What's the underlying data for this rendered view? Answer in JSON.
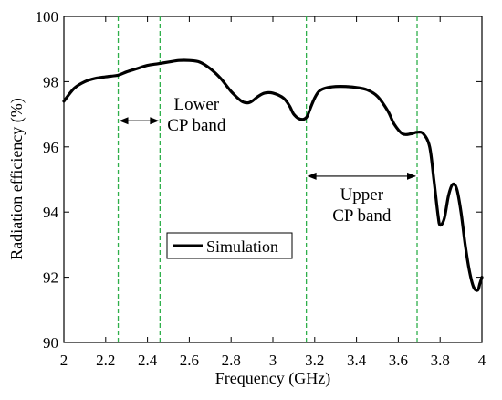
{
  "chart_data": {
    "type": "line",
    "xlabel": "Frequency (GHz)",
    "ylabel": "Radiation efficiency (%)",
    "xlim": [
      2,
      4
    ],
    "ylim": [
      90,
      100
    ],
    "x_ticks": [
      2,
      2.2,
      2.4,
      2.6,
      2.8,
      3,
      3.2,
      3.4,
      3.6,
      3.8,
      4
    ],
    "x_tick_labels": [
      "2",
      "2.2",
      "2.4",
      "2.6",
      "2.8",
      "3",
      "3.2",
      "3.4",
      "3.6",
      "3.8",
      "4"
    ],
    "y_ticks": [
      90,
      92,
      94,
      96,
      98,
      100
    ],
    "y_tick_labels": [
      "90",
      "92",
      "94",
      "96",
      "98",
      "100"
    ],
    "grid": false,
    "legend": {
      "placement": "center-left",
      "entries": [
        "Simulation"
      ]
    },
    "series": [
      {
        "name": "Simulation",
        "color": "#000000",
        "x": [
          2.0,
          2.05,
          2.1,
          2.15,
          2.2,
          2.26,
          2.3,
          2.35,
          2.4,
          2.45,
          2.5,
          2.55,
          2.6,
          2.65,
          2.7,
          2.75,
          2.8,
          2.85,
          2.88,
          2.9,
          2.93,
          2.96,
          3.0,
          3.05,
          3.08,
          3.1,
          3.13,
          3.16,
          3.18,
          3.2,
          3.22,
          3.25,
          3.3,
          3.35,
          3.4,
          3.45,
          3.5,
          3.55,
          3.58,
          3.62,
          3.66,
          3.69,
          3.72,
          3.75,
          3.77,
          3.79,
          3.8,
          3.82,
          3.84,
          3.86,
          3.88,
          3.9,
          3.92,
          3.94,
          3.96,
          3.98,
          3.99,
          4.0
        ],
        "y": [
          97.4,
          97.8,
          98.0,
          98.1,
          98.15,
          98.2,
          98.3,
          98.4,
          98.5,
          98.55,
          98.6,
          98.65,
          98.65,
          98.6,
          98.4,
          98.1,
          97.7,
          97.4,
          97.35,
          97.4,
          97.55,
          97.65,
          97.65,
          97.5,
          97.25,
          97.0,
          96.85,
          96.9,
          97.2,
          97.5,
          97.7,
          97.8,
          97.85,
          97.85,
          97.82,
          97.75,
          97.55,
          97.1,
          96.7,
          96.4,
          96.4,
          96.45,
          96.4,
          96.0,
          95.0,
          93.9,
          93.6,
          93.8,
          94.5,
          94.85,
          94.7,
          94.0,
          93.0,
          92.2,
          91.7,
          91.6,
          91.8,
          92.0
        ]
      }
    ],
    "markers": {
      "vertical_lines_x": [
        2.26,
        2.46,
        3.16,
        3.69
      ],
      "color": "#2eaf4a",
      "style": "dashed"
    },
    "annotations": [
      {
        "id": "lower",
        "text_lines": [
          "Lower",
          "CP band"
        ],
        "arrow_x": [
          2.26,
          2.46
        ],
        "arrow_y": 96.8
      },
      {
        "id": "upper",
        "text_lines": [
          "Upper",
          "CP band"
        ],
        "arrow_x": [
          3.16,
          3.69
        ],
        "arrow_y": 95.1
      }
    ]
  }
}
